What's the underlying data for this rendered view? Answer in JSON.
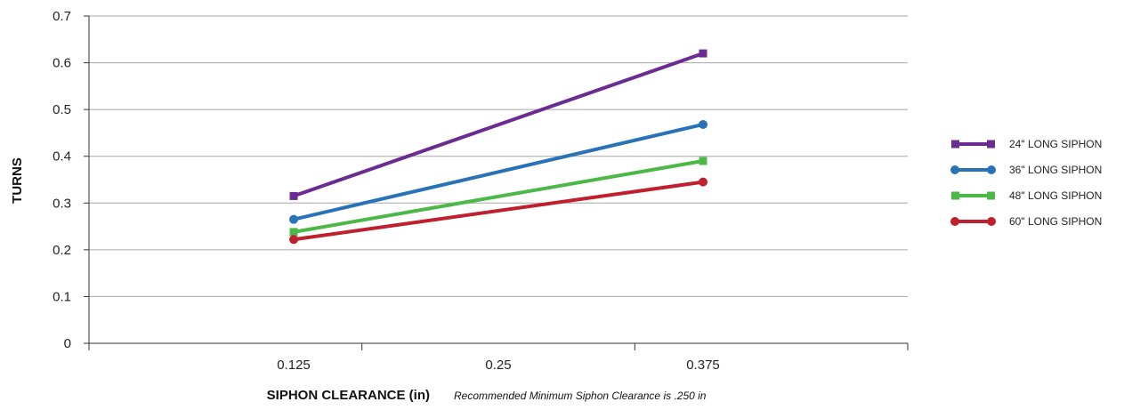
{
  "chart_data": {
    "type": "line",
    "xlabel": "SIPHON CLEARANCE (in)",
    "ylabel": "TURNS",
    "note": "Recommended Minimum Siphon Clearance is .250 in",
    "categories": [
      "0.125",
      "0.25",
      "0.375"
    ],
    "ylim": [
      0,
      0.7
    ],
    "yticks": [
      "0",
      "0.1",
      "0.2",
      "0.3",
      "0.4",
      "0.5",
      "0.6",
      "0.7"
    ],
    "grid": true,
    "legend_position": "right",
    "series": [
      {
        "name": "24\" LONG SIPHON",
        "color": "#6a2c91",
        "marker": "square",
        "points": [
          [
            0.125,
            0.315
          ],
          [
            0.375,
            0.62
          ]
        ]
      },
      {
        "name": "36\" LONG SIPHON",
        "color": "#2872b8",
        "marker": "circle",
        "points": [
          [
            0.125,
            0.265
          ],
          [
            0.375,
            0.468
          ]
        ]
      },
      {
        "name": "48\" LONG SIPHON",
        "color": "#4cb848",
        "marker": "square",
        "points": [
          [
            0.125,
            0.238
          ],
          [
            0.375,
            0.39
          ]
        ]
      },
      {
        "name": "60\" LONG SIPHON",
        "color": "#c0202e",
        "marker": "circle",
        "points": [
          [
            0.125,
            0.222
          ],
          [
            0.375,
            0.345
          ]
        ]
      }
    ]
  }
}
